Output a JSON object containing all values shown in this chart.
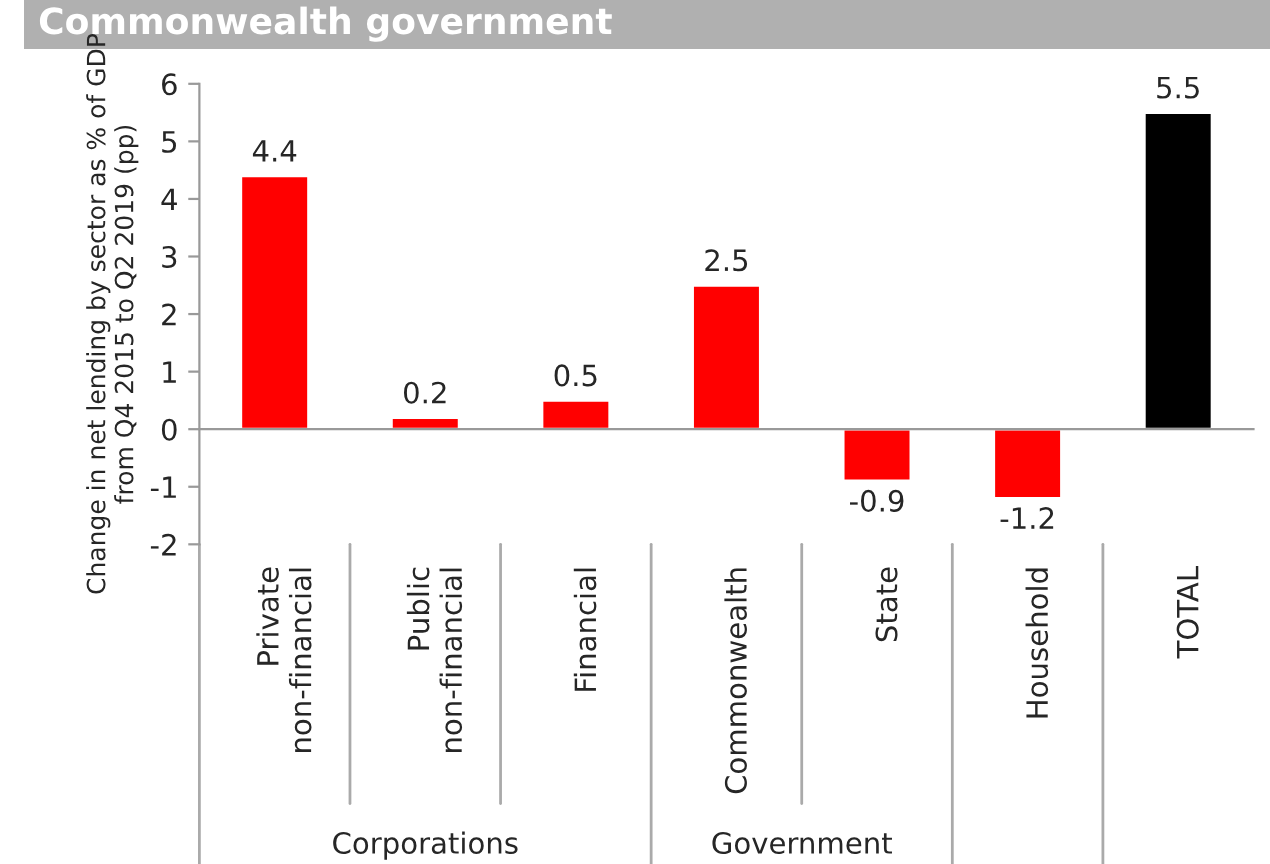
{
  "chart_data": {
    "type": "bar",
    "title": "Commonwealth government",
    "categories": [
      "Private\nnon-financial",
      "Public\nnon-financial",
      "Financial",
      "Commonwealth",
      "State",
      "Household",
      "TOTAL"
    ],
    "values": [
      4.4,
      0.2,
      0.5,
      2.5,
      -0.9,
      -1.2,
      5.5
    ],
    "colors": [
      "#ff0000",
      "#ff0000",
      "#ff0000",
      "#ff0000",
      "#ff0000",
      "#ff0000",
      "#000000"
    ],
    "ylabel": "Change in net lending by sector as % of GDP\nfrom Q4 2015 to Q2 2019 (pp)",
    "ylim": [
      -2,
      6
    ],
    "yticks": [
      -2,
      -1,
      0,
      1,
      2,
      3,
      4,
      5,
      6
    ],
    "data_labels": true,
    "annotations": [
      "Corporations",
      "Government"
    ]
  }
}
